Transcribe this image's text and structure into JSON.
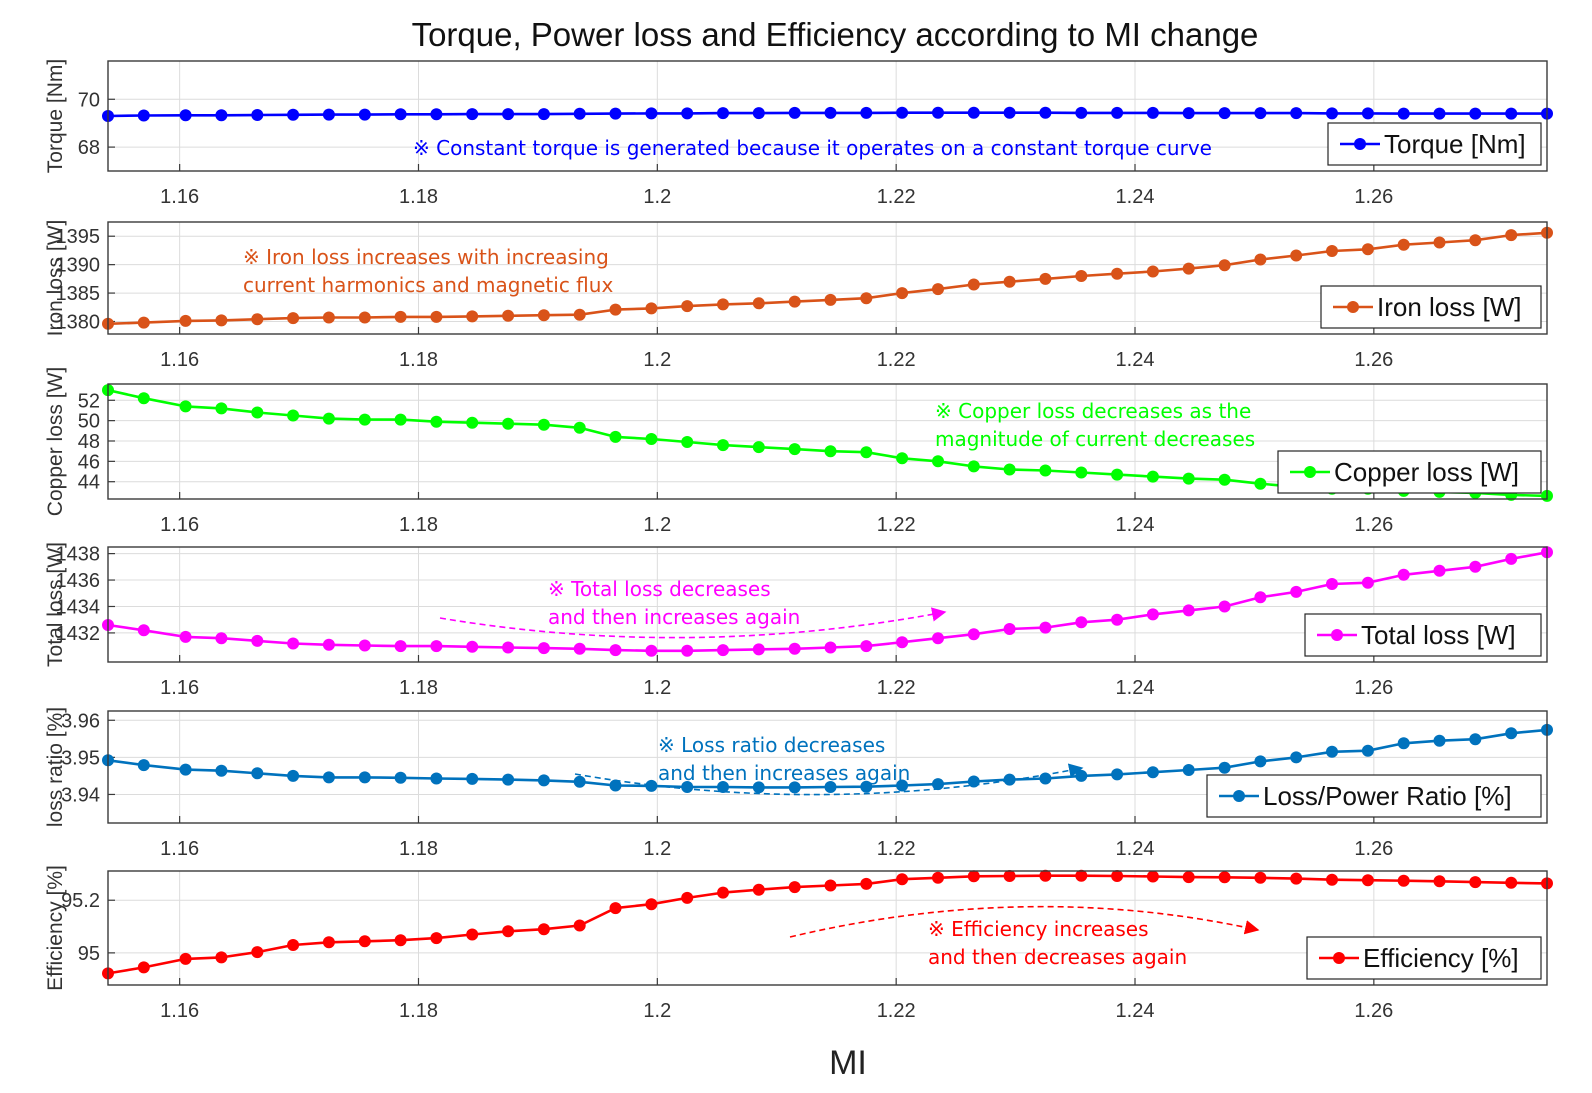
{
  "title": "Torque, Power loss and Efficiency according to MI change",
  "chart_data": {
    "type": "line",
    "title": "Torque, Power loss and Efficiency according to MI change",
    "xlabel": "MI",
    "x": [
      1.154,
      1.157,
      1.1605,
      1.1635,
      1.1665,
      1.1695,
      1.1725,
      1.1755,
      1.1785,
      1.1815,
      1.1845,
      1.1875,
      1.1905,
      1.1935,
      1.1965,
      1.1995,
      1.2025,
      1.2055,
      1.2085,
      1.2115,
      1.2145,
      1.2175,
      1.2205,
      1.2235,
      1.2265,
      1.2295,
      1.2325,
      1.2355,
      1.2385,
      1.2415,
      1.2445,
      1.2475,
      1.2505,
      1.2535,
      1.2565,
      1.2595,
      1.2625,
      1.2655,
      1.2685,
      1.2715,
      1.2745
    ],
    "xlim": [
      1.154,
      1.2745
    ],
    "xticks": [
      1.16,
      1.18,
      1.2,
      1.22,
      1.24,
      1.26
    ],
    "xtick_labels": [
      "1.16",
      "1.18",
      "1.2",
      "1.22",
      "1.24",
      "1.26"
    ],
    "panels": [
      {
        "id": "torque",
        "ylabel": "Torque [Nm]",
        "legend": "Torque [Nm]",
        "color": "#0000ff",
        "ylim": [
          67,
          71.6
        ],
        "yticks": [
          68,
          70
        ],
        "ytick_labels": [
          "68",
          "70"
        ],
        "values": [
          69.3,
          69.32,
          69.33,
          69.33,
          69.34,
          69.35,
          69.36,
          69.36,
          69.37,
          69.37,
          69.38,
          69.38,
          69.38,
          69.39,
          69.4,
          69.41,
          69.41,
          69.42,
          69.42,
          69.43,
          69.43,
          69.43,
          69.44,
          69.44,
          69.44,
          69.44,
          69.44,
          69.43,
          69.43,
          69.43,
          69.42,
          69.42,
          69.42,
          69.42,
          69.41,
          69.41,
          69.4,
          69.4,
          69.4,
          69.4,
          69.4
        ],
        "annotation": [
          "※ Constant torque is generated because it operates on a constant torque curve"
        ]
      },
      {
        "id": "iron",
        "ylabel": "Iron loss [W]",
        "legend": "Iron loss [W]",
        "color": "#d95319",
        "ylim": [
          1377.8,
          1397.5
        ],
        "yticks": [
          1380,
          1385,
          1390,
          1395
        ],
        "ytick_labels": [
          "1380",
          "1385",
          "1390",
          "1395"
        ],
        "values": [
          1379.6,
          1379.8,
          1380.1,
          1380.2,
          1380.4,
          1380.6,
          1380.7,
          1380.7,
          1380.8,
          1380.8,
          1380.9,
          1381.0,
          1381.1,
          1381.2,
          1382.1,
          1382.3,
          1382.7,
          1383.0,
          1383.2,
          1383.5,
          1383.8,
          1384.1,
          1385.0,
          1385.7,
          1386.5,
          1387.0,
          1387.5,
          1388.0,
          1388.4,
          1388.8,
          1389.3,
          1389.9,
          1390.9,
          1391.6,
          1392.4,
          1392.7,
          1393.5,
          1393.9,
          1394.3,
          1395.2,
          1395.6
        ],
        "annotation": [
          "※ Iron loss increases with increasing",
          "current harmonics and magnetic flux"
        ]
      },
      {
        "id": "copper",
        "ylabel": "Copper loss [W]",
        "legend": "Copper loss [W]",
        "color": "#00ff00",
        "ylim": [
          42.3,
          53.6
        ],
        "yticks": [
          44,
          46,
          48,
          50,
          52
        ],
        "ytick_labels": [
          "44",
          "46",
          "48",
          "50",
          "52"
        ],
        "values": [
          53.0,
          52.2,
          51.4,
          51.2,
          50.8,
          50.5,
          50.2,
          50.1,
          50.1,
          49.9,
          49.8,
          49.7,
          49.6,
          49.3,
          48.4,
          48.2,
          47.9,
          47.6,
          47.4,
          47.2,
          47.0,
          46.9,
          46.3,
          46.0,
          45.5,
          45.2,
          45.1,
          44.9,
          44.7,
          44.5,
          44.3,
          44.2,
          43.8,
          43.5,
          43.3,
          43.3,
          43.1,
          43.0,
          42.9,
          42.7,
          42.6
        ],
        "annotation": [
          "※ Copper loss decreases as the",
          "magnitude of current decreases"
        ]
      },
      {
        "id": "total",
        "ylabel": "Total loss [W]",
        "legend": "Total loss [W]",
        "color": "#ff00ff",
        "ylim": [
          1429.8,
          1438.5
        ],
        "yticks": [
          1432,
          1434,
          1436,
          1438
        ],
        "ytick_labels": [
          "1432",
          "1434",
          "1436",
          "1438"
        ],
        "values": [
          1432.6,
          1432.2,
          1431.7,
          1431.6,
          1431.4,
          1431.2,
          1431.1,
          1431.05,
          1431.0,
          1431.0,
          1430.95,
          1430.9,
          1430.85,
          1430.8,
          1430.7,
          1430.65,
          1430.65,
          1430.7,
          1430.75,
          1430.8,
          1430.9,
          1431.0,
          1431.3,
          1431.6,
          1431.9,
          1432.3,
          1432.4,
          1432.8,
          1433.0,
          1433.4,
          1433.7,
          1434.0,
          1434.7,
          1435.1,
          1435.7,
          1435.8,
          1436.4,
          1436.7,
          1437.0,
          1437.6,
          1438.1
        ],
        "annotation": [
          "※ Total loss decreases",
          "and then increases again"
        ]
      },
      {
        "id": "ratio",
        "ylabel": "loss ratio [%]",
        "legend": "Loss/Power Ratio [%]",
        "color": "#0072bd",
        "ylim": [
          3.9323,
          3.9625
        ],
        "yticks": [
          3.94,
          3.95,
          3.96
        ],
        "ytick_labels": [
          "3.94",
          "3.95",
          "3.96"
        ],
        "values": [
          3.9492,
          3.9479,
          3.9467,
          3.9464,
          3.9457,
          3.945,
          3.9446,
          3.9446,
          3.9445,
          3.9443,
          3.9442,
          3.944,
          3.9438,
          3.9434,
          3.9424,
          3.9423,
          3.942,
          3.942,
          3.9419,
          3.9419,
          3.942,
          3.9421,
          3.9424,
          3.9428,
          3.9435,
          3.944,
          3.9443,
          3.945,
          3.9454,
          3.946,
          3.9466,
          3.9472,
          3.9489,
          3.95,
          3.9515,
          3.9518,
          3.9538,
          3.9545,
          3.9549,
          3.9565,
          3.9574
        ],
        "annotation": [
          "※ Loss ratio decreases",
          "and then increases again"
        ]
      },
      {
        "id": "eff",
        "ylabel": "Efficiency [%]",
        "legend": "Efficiency [%]",
        "color": "#ff0000",
        "ylim": [
          94.878,
          95.311
        ],
        "yticks": [
          95,
          95.2
        ],
        "ytick_labels": [
          "95",
          "95.2"
        ],
        "values": [
          94.922,
          94.945,
          94.977,
          94.983,
          95.003,
          95.03,
          95.04,
          95.044,
          95.048,
          95.056,
          95.07,
          95.082,
          95.09,
          95.104,
          95.17,
          95.185,
          95.209,
          95.229,
          95.24,
          95.25,
          95.256,
          95.262,
          95.28,
          95.285,
          95.291,
          95.292,
          95.293,
          95.293,
          95.292,
          95.29,
          95.288,
          95.287,
          95.285,
          95.282,
          95.278,
          95.276,
          95.274,
          95.272,
          95.269,
          95.266,
          95.264
        ],
        "annotation": [
          "※ Efficiency increases",
          "and then decreases again"
        ]
      }
    ]
  }
}
